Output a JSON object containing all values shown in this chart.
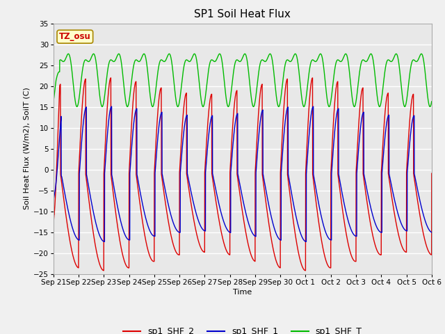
{
  "title": "SP1 Soil Heat Flux",
  "xlabel": "Time",
  "ylabel": "Soil Heat Flux (W/m2), SoilT (C)",
  "ylim": [
    -25,
    35
  ],
  "yticks": [
    -25,
    -20,
    -15,
    -10,
    -5,
    0,
    5,
    10,
    15,
    20,
    25,
    30,
    35
  ],
  "xtick_labels": [
    "Sep 21",
    "Sep 22",
    "Sep 23",
    "Sep 24",
    "Sep 25",
    "Sep 26",
    "Sep 27",
    "Sep 28",
    "Sep 29",
    "Sep 30",
    "Oct 1",
    "Oct 2",
    "Oct 3",
    "Oct 4",
    "Oct 5",
    "Oct 6"
  ],
  "color_shf2": "#dd0000",
  "color_shf1": "#0000cc",
  "color_shft": "#00bb00",
  "plot_bg": "#e8e8e8",
  "fig_bg": "#f0f0f0",
  "tz_label": "TZ_osu",
  "tz_box_color": "#ffffcc",
  "tz_text_color": "#cc0000",
  "legend_labels": [
    "sp1_SHF_2",
    "sp1_SHF_1",
    "sp1_SHF_T"
  ],
  "title_fontsize": 11,
  "axis_label_fontsize": 8,
  "tick_fontsize": 7.5,
  "legend_fontsize": 9
}
